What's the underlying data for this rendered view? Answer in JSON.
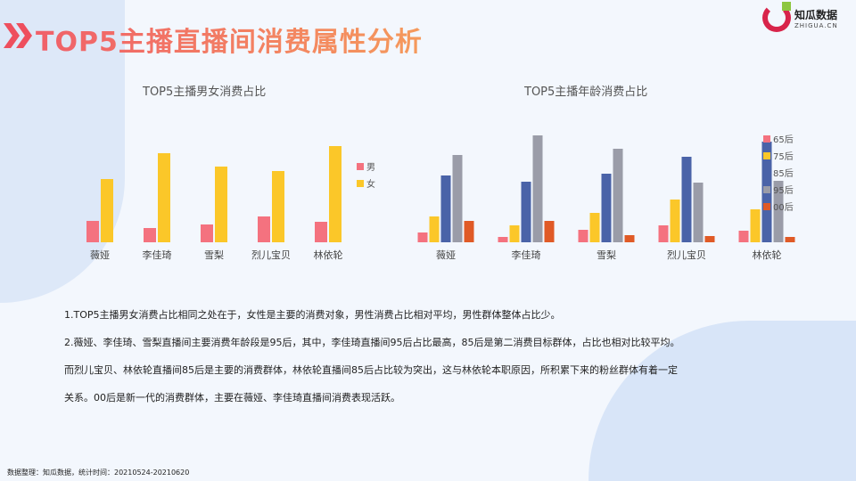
{
  "title": "TOP5主播直播间消费属性分析",
  "logo": {
    "name": "知瓜数据",
    "domain": "ZHIGUA.CN"
  },
  "chart_data": [
    {
      "type": "bar",
      "title": "TOP5主播男女消费占比",
      "categories": [
        "薇娅",
        "李佳琦",
        "雪梨",
        "烈儿宝贝",
        "林依轮"
      ],
      "series": [
        {
          "name": "男",
          "color": "#f4727f",
          "values": [
            24,
            16,
            20,
            29,
            23
          ]
        },
        {
          "name": "女",
          "color": "#fbc729",
          "values": [
            71,
            100,
            85,
            80,
            108
          ]
        }
      ],
      "ylim": [
        0,
        120
      ],
      "legend": "right",
      "grid": false
    },
    {
      "type": "bar",
      "title": "TOP5主播年龄消费占比",
      "categories": [
        "薇娅",
        "李佳琦",
        "雪梨",
        "烈儿宝贝",
        "林依轮"
      ],
      "series": [
        {
          "name": "65后",
          "color": "#f4727f",
          "values": [
            11,
            6,
            14,
            19,
            13
          ]
        },
        {
          "name": "75后",
          "color": "#fbc729",
          "values": [
            29,
            19,
            33,
            48,
            37
          ]
        },
        {
          "name": "85后",
          "color": "#4a63a8",
          "values": [
            75,
            68,
            77,
            96,
            113
          ]
        },
        {
          "name": "95后",
          "color": "#9a9ca8",
          "values": [
            98,
            120,
            105,
            67,
            69
          ]
        },
        {
          "name": "00后",
          "color": "#e05a26",
          "values": [
            24,
            24,
            8,
            7,
            6
          ]
        }
      ],
      "ylim": [
        0,
        120
      ],
      "legend": "right",
      "grid": false
    }
  ],
  "paragraphs": [
    "1.TOP5主播男女消费占比相同之处在于，女性是主要的消费对象，男性消费占比相对平均，男性群体整体占比少。",
    "2.薇娅、李佳琦、雪梨直播间主要消费年龄段是95后，其中，李佳琦直播间95后占比最高，85后是第二消费目标群体，占比也相对比较平均。",
    "而烈儿宝贝、林依轮直播间85后是主要的消费群体，林依轮直播间85后占比较为突出，这与林依轮本职原因，所积累下来的粉丝群体有着一定",
    "关系。00后是新一代的消费群体，主要在薇娅、李佳琦直播间消费表现活跃。"
  ],
  "footer": "数据整理：知瓜数据，统计时间：20210524-20210620"
}
